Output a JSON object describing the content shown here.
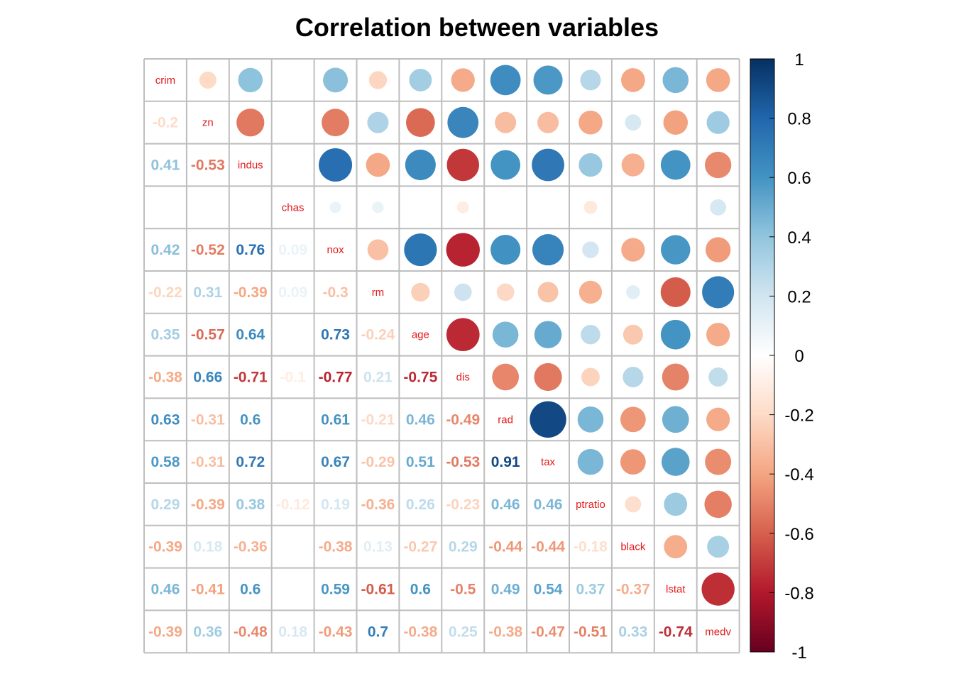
{
  "chart_data": {
    "type": "heatmap",
    "title": "Correlation between variables",
    "variables": [
      "crim",
      "zn",
      "indus",
      "chas",
      "nox",
      "rm",
      "age",
      "dis",
      "rad",
      "tax",
      "ptratio",
      "black",
      "lstat",
      "medv"
    ],
    "lower_labels": [
      [],
      [
        "-0.2"
      ],
      [
        "0.41",
        "-0.53"
      ],
      [
        "",
        "",
        ""
      ],
      [
        "0.42",
        "-0.52",
        "0.76",
        "0.09"
      ],
      [
        "-0.22",
        "0.31",
        "-0.39",
        "0.09",
        "-0.3"
      ],
      [
        "0.35",
        "-0.57",
        "0.64",
        "",
        "0.73",
        "-0.24"
      ],
      [
        "-0.38",
        "0.66",
        "-0.71",
        "-0.1",
        "-0.77",
        "0.21",
        "-0.75"
      ],
      [
        "0.63",
        "-0.31",
        "0.6",
        "",
        "0.61",
        "-0.21",
        "0.46",
        "-0.49"
      ],
      [
        "0.58",
        "-0.31",
        "0.72",
        "",
        "0.67",
        "-0.29",
        "0.51",
        "-0.53",
        "0.91"
      ],
      [
        "0.29",
        "-0.39",
        "0.38",
        "-0.12",
        "0.19",
        "-0.36",
        "0.26",
        "-0.23",
        "0.46",
        "0.46"
      ],
      [
        "-0.39",
        "0.18",
        "-0.36",
        "",
        "-0.38",
        "0.13",
        "-0.27",
        "0.29",
        "-0.44",
        "-0.44",
        "-0.18"
      ],
      [
        "0.46",
        "-0.41",
        "0.6",
        "",
        "0.59",
        "-0.61",
        "0.6",
        "-0.5",
        "0.49",
        "0.54",
        "0.37",
        "-0.37"
      ],
      [
        "-0.39",
        "0.36",
        "-0.48",
        "0.18",
        "-0.43",
        "0.7",
        "-0.38",
        "0.25",
        "-0.38",
        "-0.47",
        "-0.51",
        "0.33",
        "-0.74"
      ]
    ],
    "colorbar": {
      "ticks": [
        "1",
        "0.8",
        "0.6",
        "0.4",
        "0.2",
        "0",
        "-0.2",
        "-0.4",
        "-0.6",
        "-0.8",
        "-1"
      ],
      "range": [
        -1,
        1
      ]
    },
    "diagonal_label_color": "#e31a1c",
    "grid": true,
    "legend": "right",
    "palette": [
      "#67001f",
      "#b2182b",
      "#d6604d",
      "#f4a582",
      "#fddbc7",
      "#ffffff",
      "#d1e5f0",
      "#92c5de",
      "#4393c3",
      "#2166ac",
      "#053061"
    ]
  }
}
